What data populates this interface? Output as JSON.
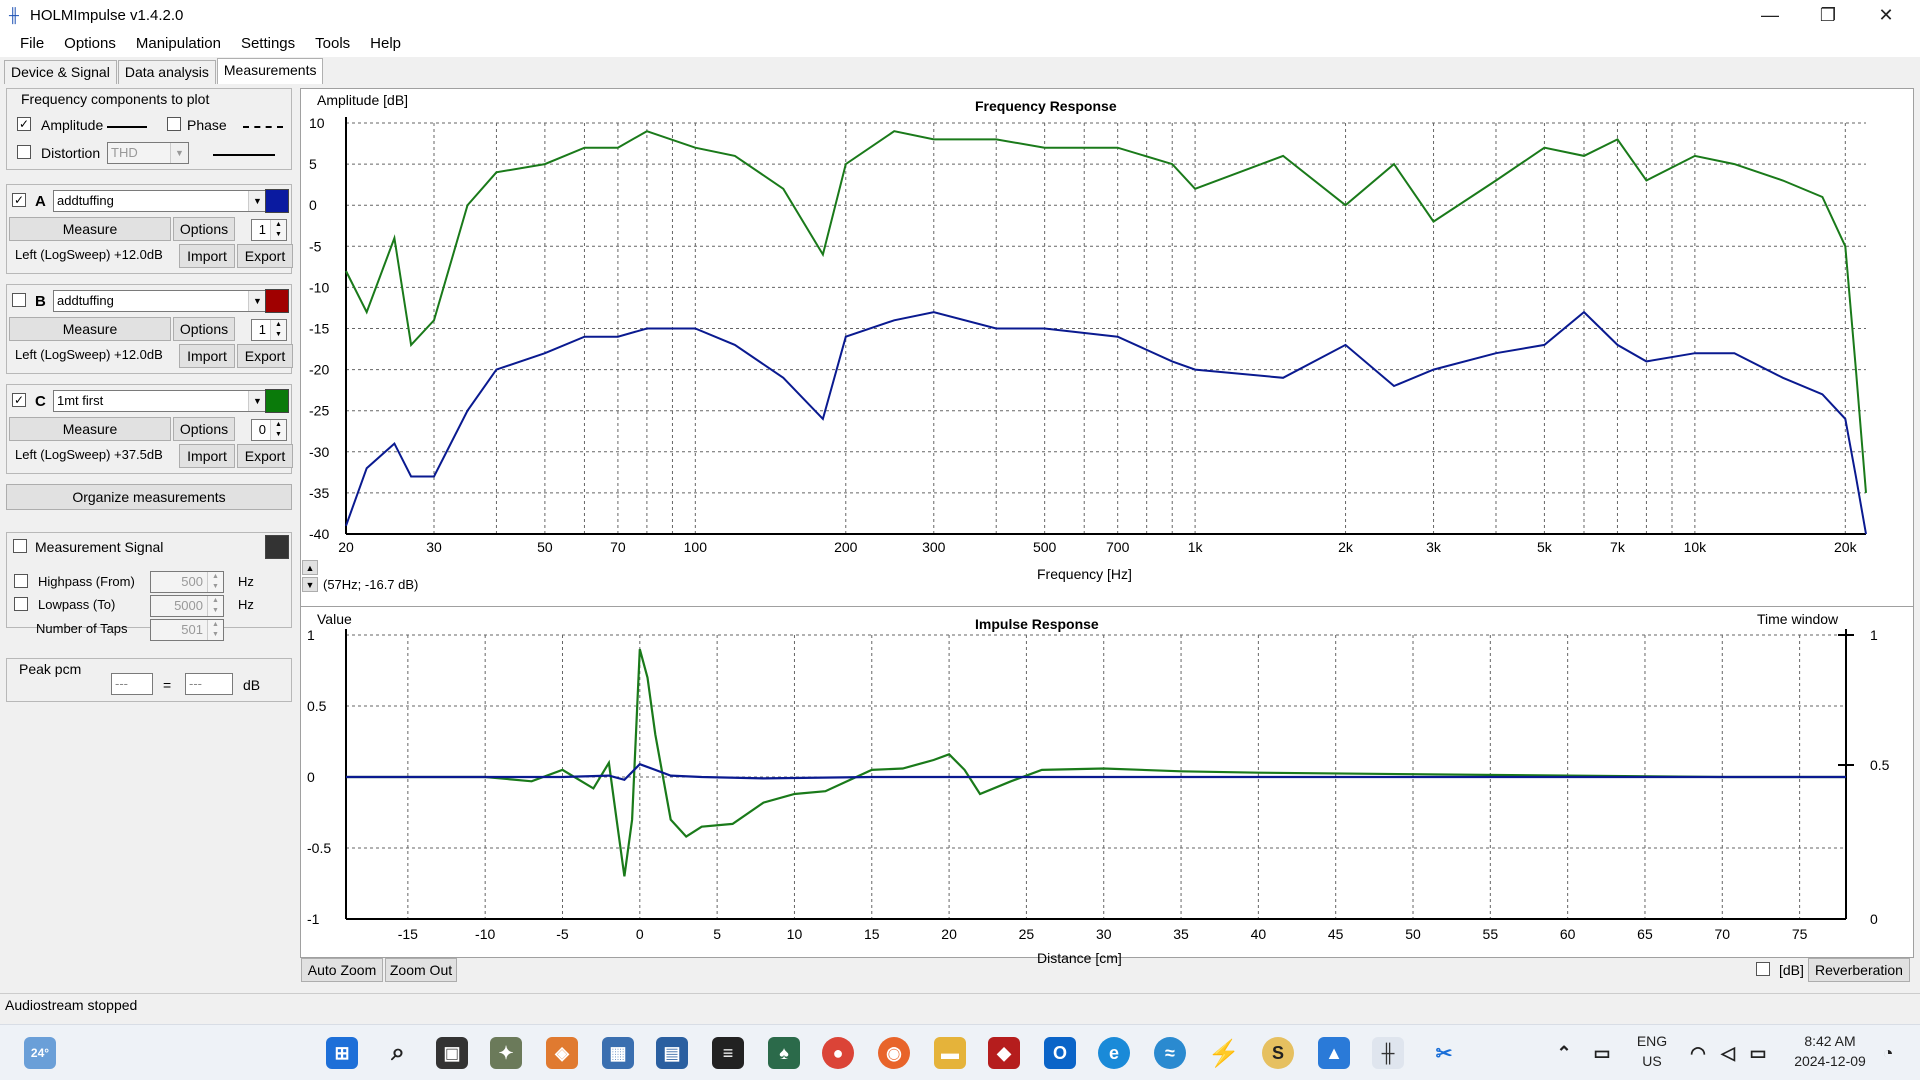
{
  "window": {
    "title": "HOLMImpulse  v1.4.2.0"
  },
  "menu": [
    "File",
    "Options",
    "Manipulation",
    "Settings",
    "Tools",
    "Help"
  ],
  "tabs": [
    "Device & Signal",
    "Data analysis",
    "Measurements"
  ],
  "freq_components": {
    "group_label": "Frequency components to plot",
    "amplitude_label": "Amplitude",
    "phase_label": "Phase",
    "distortion_label": "Distortion",
    "distortion_select": "THD"
  },
  "measurements": [
    {
      "letter": "A",
      "name": "addtuffing",
      "color": "#0a1aa0",
      "checked": true,
      "measure": "Measure",
      "options": "Options",
      "spin": "1",
      "info": "Left (LogSweep) +12.0dB",
      "import": "Import",
      "export": "Export"
    },
    {
      "letter": "B",
      "name": "addtuffing",
      "color": "#a00000",
      "checked": false,
      "measure": "Measure",
      "options": "Options",
      "spin": "1",
      "info": "Left (LogSweep) +12.0dB",
      "import": "Import",
      "export": "Export"
    },
    {
      "letter": "C",
      "name": "1mt first",
      "color": "#0a7a0a",
      "checked": true,
      "measure": "Measure",
      "options": "Options",
      "spin": "0",
      "info": "Left (LogSweep) +37.5dB",
      "import": "Import",
      "export": "Export"
    }
  ],
  "organize_label": "Organize measurements",
  "signal": {
    "label": "Measurement Signal",
    "highpass_label": "Highpass (From)",
    "highpass_value": "500",
    "lowpass_label": "Lowpass (To)",
    "lowpass_value": "5000",
    "taps_label": "Number of Taps",
    "taps_value": "501",
    "hz": "Hz"
  },
  "peak": {
    "label": "Peak pcm",
    "left": "---",
    "eq": "=",
    "right": "---",
    "unit": "dB"
  },
  "freq_plot": {
    "title": "Frequency Response",
    "ylabel": "Amplitude [dB]",
    "xlabel": "Frequency [Hz]",
    "cursor": "(57Hz; -16.7 dB)",
    "y_ticks": [
      "10",
      "5",
      "0",
      "-5",
      "-10",
      "-15",
      "-20",
      "-25",
      "-30",
      "-35",
      "-40"
    ],
    "x_ticks": [
      "20",
      "30",
      "50",
      "70",
      "100",
      "200",
      "300",
      "500",
      "700",
      "1k",
      "2k",
      "3k",
      "5k",
      "7k",
      "10k",
      "20k"
    ]
  },
  "impulse_plot": {
    "title": "Impulse Response",
    "ylabel": "Value",
    "xlabel": "Distance [cm]",
    "time_window_label": "Time window",
    "y_ticks": [
      "1",
      "0.5",
      "0",
      "-0.5",
      "-1"
    ],
    "right_ticks": [
      "1",
      "0.5",
      "0"
    ],
    "x_ticks": [
      "-15",
      "-10",
      "-5",
      "0",
      "5",
      "10",
      "15",
      "20",
      "25",
      "30",
      "35",
      "40",
      "45",
      "50",
      "55",
      "60",
      "65",
      "70",
      "75"
    ]
  },
  "buttons": {
    "auto_zoom": "Auto Zoom",
    "zoom_out": "Zoom Out",
    "db": "[dB]",
    "reverberation": "Reverberation"
  },
  "status": "Audiostream stopped",
  "taskbar": {
    "weather": "24°",
    "lang": "ENG",
    "region": "US",
    "time": "8:42 AM",
    "date": "2024-12-09"
  },
  "chart_data": [
    {
      "type": "line",
      "title": "Frequency Response",
      "xlabel": "Frequency [Hz]",
      "ylabel": "Amplitude [dB]",
      "xscale": "log",
      "xlim": [
        20,
        22000
      ],
      "ylim": [
        -40,
        10
      ],
      "grid": true,
      "series": [
        {
          "color": "#1a7a1a",
          "x": [
            20,
            22,
            25,
            27,
            30,
            35,
            40,
            50,
            60,
            70,
            80,
            100,
            120,
            150,
            180,
            200,
            250,
            300,
            400,
            500,
            700,
            900,
            1000,
            1500,
            2000,
            2500,
            3000,
            4000,
            5000,
            6000,
            7000,
            8000,
            10000,
            12000,
            15000,
            18000,
            20000,
            21000,
            22000
          ],
          "y": [
            -8,
            -13,
            -4,
            -17,
            -14,
            0,
            4,
            5,
            7,
            7,
            9,
            7,
            6,
            2,
            -6,
            5,
            9,
            8,
            8,
            7,
            7,
            5,
            2,
            6,
            0,
            5,
            -2,
            3,
            7,
            6,
            8,
            3,
            6,
            5,
            3,
            1,
            -5,
            -20,
            -35
          ]
        },
        {
          "color": "#0a1a90",
          "x": [
            20,
            22,
            25,
            27,
            30,
            35,
            40,
            50,
            60,
            70,
            80,
            100,
            120,
            150,
            180,
            200,
            250,
            300,
            400,
            500,
            700,
            900,
            1000,
            1500,
            2000,
            2500,
            3000,
            4000,
            5000,
            6000,
            7000,
            8000,
            10000,
            12000,
            15000,
            18000,
            20000,
            21000,
            22000
          ],
          "y": [
            -39,
            -32,
            -29,
            -33,
            -33,
            -25,
            -20,
            -18,
            -16,
            -16,
            -15,
            -15,
            -17,
            -21,
            -26,
            -16,
            -14,
            -13,
            -15,
            -15,
            -16,
            -19,
            -20,
            -21,
            -17,
            -22,
            -20,
            -18,
            -17,
            -13,
            -17,
            -19,
            -18,
            -18,
            -21,
            -23,
            -26,
            -33,
            -40
          ]
        }
      ]
    },
    {
      "type": "line",
      "title": "Impulse Response",
      "xlabel": "Distance [cm]",
      "ylabel": "Value",
      "xlim": [
        -19,
        78
      ],
      "ylim": [
        -1,
        1
      ],
      "grid": true,
      "series": [
        {
          "color": "#1a7a1a",
          "x": [
            -19,
            -10,
            -7,
            -5,
            -3,
            -2,
            -1.5,
            -1,
            -0.5,
            0,
            0.5,
            1,
            2,
            3,
            4,
            6,
            8,
            10,
            12,
            15,
            17,
            19,
            20,
            21,
            22,
            24,
            26,
            30,
            35,
            40,
            50,
            60,
            70,
            78
          ],
          "y": [
            0,
            0,
            -0.03,
            0.05,
            -0.08,
            0.1,
            -0.3,
            -0.7,
            -0.3,
            0.9,
            0.7,
            0.3,
            -0.3,
            -0.42,
            -0.35,
            -0.33,
            -0.18,
            -0.12,
            -0.1,
            0.05,
            0.06,
            0.12,
            0.16,
            0.05,
            -0.12,
            -0.03,
            0.05,
            0.06,
            0.04,
            0.03,
            0.02,
            0.01,
            0.0,
            0.0
          ]
        },
        {
          "color": "#0a1a90",
          "x": [
            -19,
            -5,
            -2,
            -1,
            0,
            1,
            2,
            4,
            8,
            15,
            30,
            78
          ],
          "y": [
            0,
            0,
            0.01,
            -0.02,
            0.09,
            0.05,
            0.01,
            0.0,
            -0.01,
            0.0,
            0.0,
            0.0
          ]
        }
      ]
    }
  ]
}
